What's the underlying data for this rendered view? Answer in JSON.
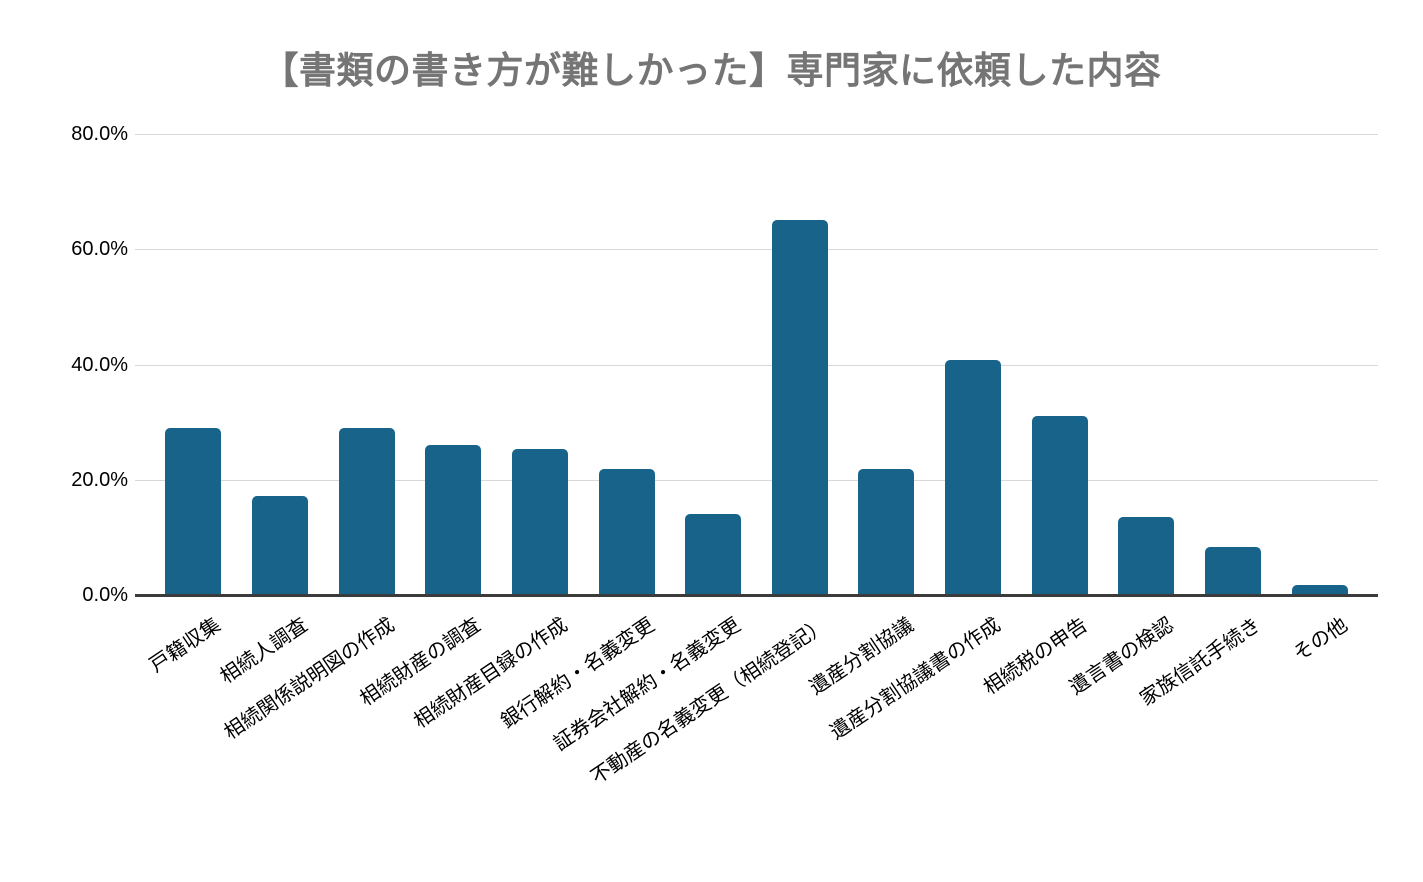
{
  "chart_data": {
    "type": "bar",
    "title": "【書類の書き方が難しかった】専門家に依頼した内容",
    "categories": [
      "戸籍収集",
      "相続人調査",
      "相続関係説明図の作成",
      "相続財産の調査",
      "相続財産目録の作成",
      "銀行解約・名義変更",
      "証券会社解約・名義変更",
      "不動産の名義変更（相続登記）",
      "遺産分割協議",
      "遺産分割協議書の作成",
      "相続税の申告",
      "遺言書の検認",
      "家族信託手続き",
      "その他"
    ],
    "values": [
      29.0,
      17.1,
      29.0,
      26.1,
      25.4,
      21.8,
      14.1,
      65.0,
      21.8,
      40.7,
      31.1,
      13.5,
      8.3,
      1.8
    ],
    "value_unit": "%",
    "xlabel": "",
    "ylabel": "",
    "ylim": [
      0,
      80
    ],
    "yticks": [
      {
        "value": 80,
        "label": "80.0%"
      },
      {
        "value": 60,
        "label": "60.0%"
      },
      {
        "value": 40,
        "label": "40.0%"
      },
      {
        "value": 20,
        "label": "20.0%"
      },
      {
        "value": 0,
        "label": "0.0%"
      }
    ],
    "grid": "horizontal",
    "legend": "none",
    "colors": {
      "bar": "#17638a",
      "title": "#757575",
      "gridline": "#d8d8d8",
      "axis_line": "#3b3b3b",
      "tick_label": "#000000",
      "category_label": "#000000",
      "background": "#ffffff"
    }
  }
}
